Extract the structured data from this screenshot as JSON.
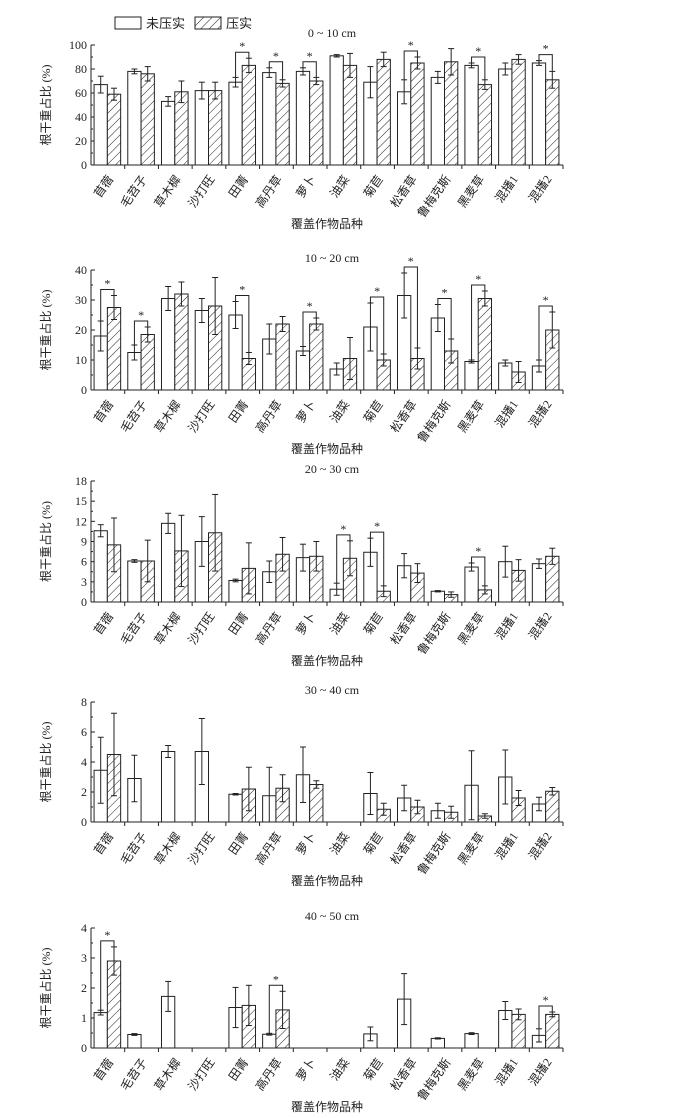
{
  "legend": {
    "series_a": "未压实",
    "series_b": "压实"
  },
  "colors": {
    "axis": "#222222",
    "bar_fill": "#ffffff",
    "hatch": "#222222"
  },
  "chart_data": [
    {
      "type": "bar",
      "title": "0 ~ 10 cm",
      "xlabel": "覆盖作物品种",
      "ylabel": "根干重占比 (%)",
      "ylim": [
        0,
        100
      ],
      "yticks": [
        0,
        20,
        40,
        60,
        80,
        100
      ],
      "categories": [
        "苜蓿",
        "毛苕子",
        "草木樨",
        "沙打旺",
        "田菁",
        "高丹草",
        "萝卜",
        "油菜",
        "菊苣",
        "松香草",
        "鲁梅克斯",
        "黑麦草",
        "混播1",
        "混播2"
      ],
      "series": [
        {
          "name": "未压实",
          "values": [
            67,
            78,
            53,
            62,
            69,
            77,
            78,
            91,
            69,
            61,
            73,
            83,
            80,
            85
          ],
          "errors": [
            7,
            2,
            4,
            7,
            4,
            4,
            3,
            1,
            13,
            10,
            5,
            2,
            5,
            2
          ]
        },
        {
          "name": "压实",
          "values": [
            59,
            76,
            61,
            62,
            83,
            68,
            70,
            83,
            88,
            85,
            86,
            67,
            88,
            71
          ],
          "errors": [
            5,
            6,
            9,
            7,
            6,
            3,
            3,
            10,
            6,
            5,
            11,
            4,
            4,
            7
          ]
        }
      ],
      "significant": [
        "田菁",
        "高丹草",
        "萝卜",
        "松香草",
        "黑麦草",
        "混播2"
      ]
    },
    {
      "type": "bar",
      "title": "10 ~ 20 cm",
      "xlabel": "覆盖作物品种",
      "ylabel": "根干重占比 (%)",
      "ylim": [
        0,
        40
      ],
      "yticks": [
        0,
        10,
        20,
        30,
        40
      ],
      "categories": [
        "苜蓿",
        "毛苕子",
        "草木樨",
        "沙打旺",
        "田菁",
        "高丹草",
        "萝卜",
        "油菜",
        "菊苣",
        "松香草",
        "鲁梅克斯",
        "黑麦草",
        "混播1",
        "混播2"
      ],
      "series": [
        {
          "name": "未压实",
          "values": [
            18,
            12.5,
            30.5,
            26.5,
            25,
            17,
            13,
            7,
            21,
            31.5,
            24,
            9.5,
            9,
            8
          ],
          "errors": [
            5,
            2.5,
            4,
            4,
            4.5,
            5,
            1.5,
            2,
            8,
            7.5,
            4.5,
            0.5,
            1,
            2
          ]
        },
        {
          "name": "压实",
          "values": [
            27.5,
            18.5,
            32,
            28,
            10.5,
            22,
            22,
            10.5,
            10,
            10.5,
            13,
            30.5,
            6,
            20
          ],
          "errors": [
            4,
            2.5,
            4,
            9.5,
            2,
            2.5,
            2,
            7,
            2,
            3.5,
            4,
            2.5,
            3.5,
            6
          ]
        }
      ],
      "significant": [
        "苜蓿",
        "毛苕子",
        "田菁",
        "萝卜",
        "菊苣",
        "松香草",
        "鲁梅克斯",
        "黑麦草",
        "混播2"
      ]
    },
    {
      "type": "bar",
      "title": "20 ~ 30 cm",
      "xlabel": "覆盖作物品种",
      "ylabel": "根干重占比 (%)",
      "ylim": [
        0,
        18
      ],
      "yticks": [
        0,
        3,
        6,
        9,
        12,
        15,
        18
      ],
      "categories": [
        "苜蓿",
        "毛苕子",
        "草木樨",
        "沙打旺",
        "田菁",
        "高丹草",
        "萝卜",
        "油菜",
        "菊苣",
        "松香草",
        "鲁梅克斯",
        "黑麦草",
        "混播1",
        "混播2"
      ],
      "series": [
        {
          "name": "未压实",
          "values": [
            10.6,
            6.1,
            11.7,
            9.0,
            3.2,
            4.5,
            6.6,
            1.9,
            7.4,
            5.4,
            1.6,
            5.2,
            6.0,
            5.7
          ],
          "errors": [
            0.9,
            0.2,
            1.5,
            3.7,
            0.2,
            1.6,
            2.0,
            0.9,
            2.1,
            1.8,
            0.1,
            0.6,
            2.3,
            0.7
          ]
        },
        {
          "name": "压实",
          "values": [
            8.5,
            6.1,
            7.6,
            10.3,
            5.0,
            7.1,
            6.8,
            6.5,
            1.6,
            4.3,
            1.1,
            1.8,
            4.7,
            6.8
          ],
          "errors": [
            4.0,
            3.1,
            5.3,
            5.7,
            3.8,
            2.5,
            2.2,
            2.6,
            0.8,
            1.4,
            0.4,
            0.6,
            1.6,
            1.2
          ]
        }
      ],
      "significant": [
        "油菜",
        "菊苣",
        "黑麦草"
      ]
    },
    {
      "type": "bar",
      "title": "30 ~ 40 cm",
      "xlabel": "覆盖作物品种",
      "ylabel": "根干重占比 (%)",
      "ylim": [
        0,
        8
      ],
      "yticks": [
        0,
        2,
        4,
        6,
        8
      ],
      "categories": [
        "苜蓿",
        "毛苕子",
        "草木樨",
        "沙打旺",
        "田菁",
        "高丹草",
        "萝卜",
        "油菜",
        "菊苣",
        "松香草",
        "鲁梅克斯",
        "黑麦草",
        "混播1",
        "混播2"
      ],
      "series": [
        {
          "name": "未压实",
          "values": [
            3.45,
            2.9,
            4.7,
            4.7,
            1.85,
            1.75,
            3.15,
            0,
            1.9,
            1.6,
            0.75,
            2.45,
            3.0,
            1.2
          ],
          "errors": [
            2.2,
            1.55,
            0.4,
            2.2,
            0.05,
            1.9,
            1.85,
            0,
            1.4,
            0.85,
            0.5,
            2.3,
            1.8,
            0.45
          ]
        },
        {
          "name": "压实",
          "values": [
            4.5,
            0,
            0,
            0,
            2.2,
            2.25,
            2.5,
            0,
            0.85,
            1.0,
            0.65,
            0.4,
            1.6,
            2.05
          ],
          "errors": [
            2.75,
            0,
            0,
            0,
            1.45,
            0.9,
            0.25,
            0,
            0.4,
            0.45,
            0.4,
            0.15,
            0.5,
            0.25
          ]
        }
      ],
      "significant": []
    },
    {
      "type": "bar",
      "title": "40 ~ 50 cm",
      "xlabel": "覆盖作物品种",
      "ylabel": "根干重占比 (%)",
      "ylim": [
        0,
        4
      ],
      "yticks": [
        0,
        1,
        2,
        3,
        4
      ],
      "categories": [
        "苜蓿",
        "毛苕子",
        "草木樨",
        "沙打旺",
        "田菁",
        "高丹草",
        "萝卜",
        "油菜",
        "菊苣",
        "松香草",
        "鲁梅克斯",
        "黑麦草",
        "混播1",
        "混播2"
      ],
      "series": [
        {
          "name": "未压实",
          "values": [
            1.18,
            0.45,
            1.72,
            0,
            1.35,
            0.46,
            0,
            0,
            0.47,
            1.63,
            0.32,
            0.48,
            1.25,
            0.42
          ],
          "errors": [
            0.08,
            0.03,
            0.5,
            0,
            0.67,
            0.03,
            0,
            0,
            0.23,
            0.85,
            0.02,
            0.03,
            0.3,
            0.22
          ]
        },
        {
          "name": "压实",
          "values": [
            2.9,
            0,
            0,
            0,
            1.42,
            1.27,
            0,
            0,
            0,
            0,
            0,
            0,
            1.12,
            1.12
          ],
          "errors": [
            0.47,
            0,
            0,
            0,
            0.67,
            0.62,
            0,
            0,
            0,
            0,
            0,
            0,
            0.18,
            0.08
          ]
        }
      ],
      "significant": [
        "苜蓿",
        "高丹草",
        "混播2"
      ]
    }
  ]
}
